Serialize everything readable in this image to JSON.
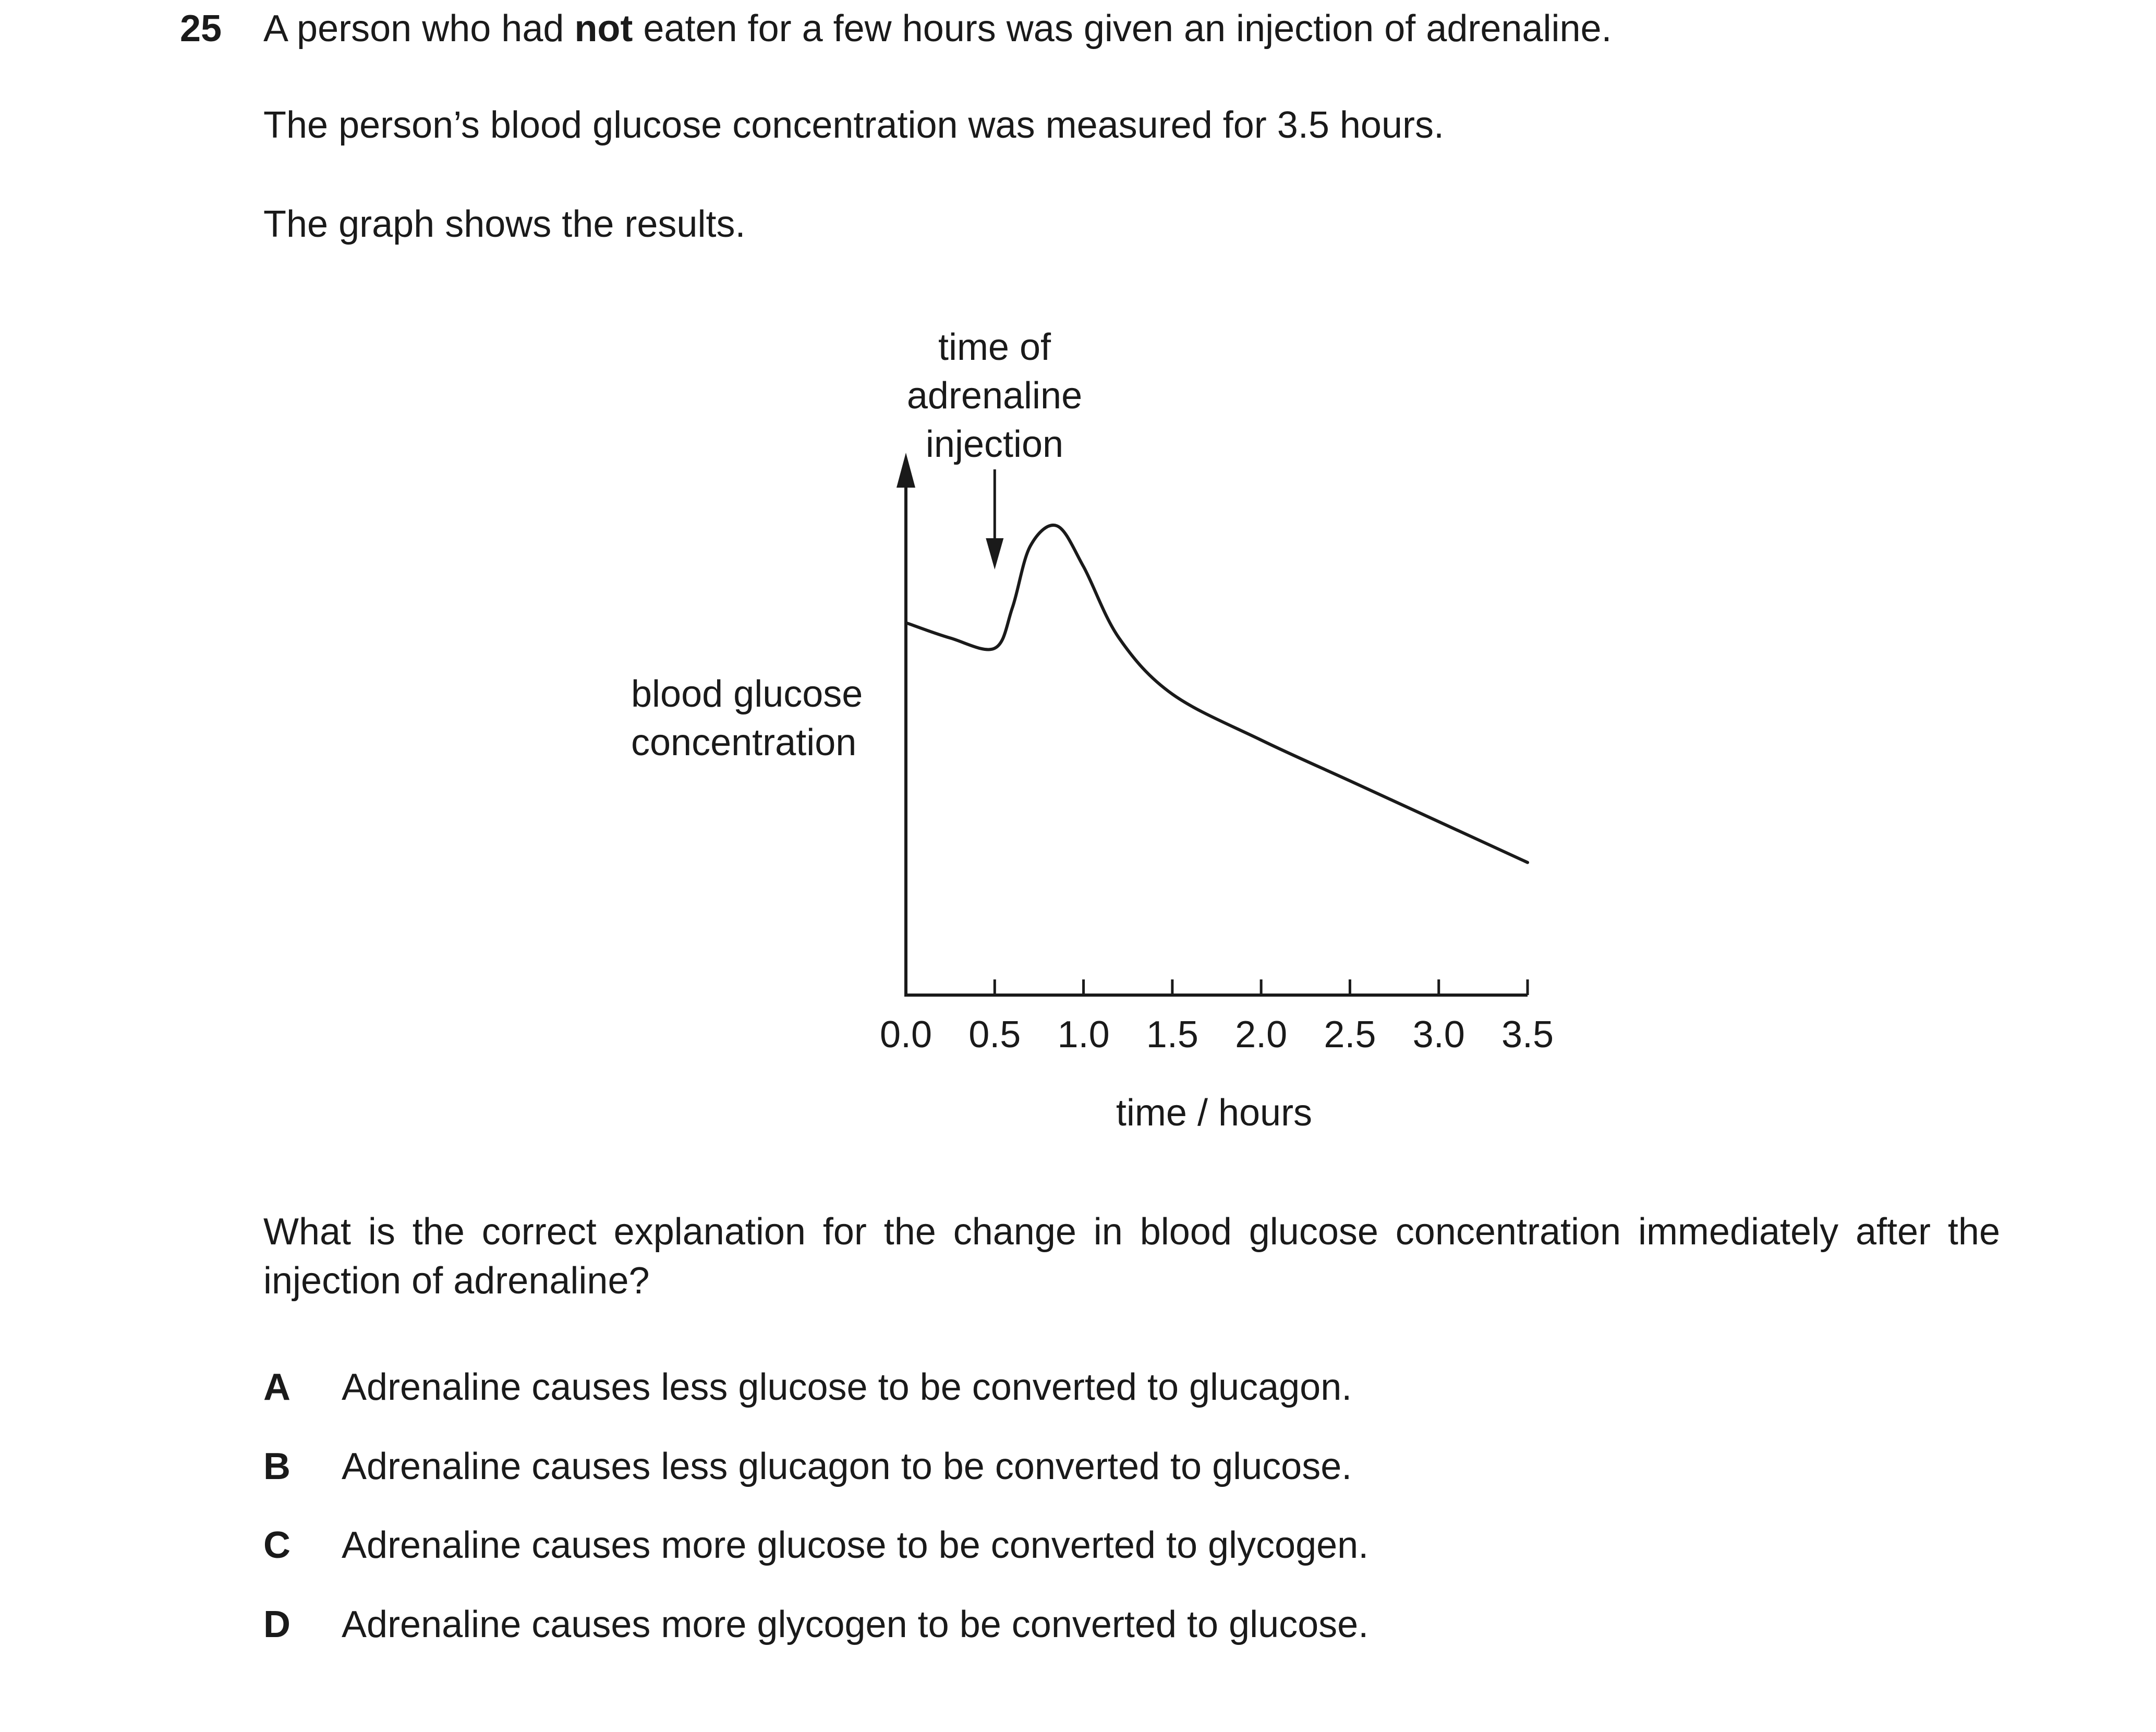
{
  "question": {
    "number": "25",
    "intro_before_bold": "A person who had ",
    "intro_bold": "not",
    "intro_after_bold": " eaten for a few hours was given an injection of adrenaline.",
    "line2": "The person’s blood glucose concentration was measured for 3.5 hours.",
    "line3": "The graph shows the results.",
    "prompt": "What is the correct explanation for the change in blood glucose concentration immediately after the injection of adrenaline?",
    "options": [
      {
        "letter": "A",
        "text": "Adrenaline causes less glucose to be converted to glucagon."
      },
      {
        "letter": "B",
        "text": "Adrenaline causes less glucagon to be converted to glucose."
      },
      {
        "letter": "C",
        "text": "Adrenaline causes more glucose to be converted to glycogen."
      },
      {
        "letter": "D",
        "text": "Adrenaline causes more glycogen to be converted to glucose."
      }
    ]
  },
  "chart_data": {
    "type": "line",
    "title": "",
    "xlabel": "time / hours",
    "ylabel_lines": [
      "blood glucose",
      "concentration"
    ],
    "xlim": [
      0,
      3.5
    ],
    "ylim": [
      0,
      10
    ],
    "x_ticks": [
      0.0,
      0.5,
      1.0,
      1.5,
      2.0,
      2.5,
      3.0,
      3.5
    ],
    "x_tick_labels": [
      "0.0",
      "0.5",
      "1.0",
      "1.5",
      "2.0",
      "2.5",
      "3.0",
      "3.5"
    ],
    "y_tick_labels": [],
    "grid": false,
    "annotation": {
      "lines": [
        "time of",
        "adrenaline",
        "injection"
      ],
      "x": 0.5
    },
    "series": [
      {
        "name": "blood glucose concentration",
        "x": [
          0.0,
          0.25,
          0.5,
          0.6,
          0.7,
          0.85,
          1.0,
          1.2,
          1.5,
          2.0,
          2.5,
          3.0,
          3.5
        ],
        "y": [
          7.3,
          7.0,
          6.8,
          7.6,
          8.8,
          9.2,
          8.4,
          7.0,
          5.9,
          5.0,
          4.2,
          3.4,
          2.6
        ]
      }
    ]
  }
}
